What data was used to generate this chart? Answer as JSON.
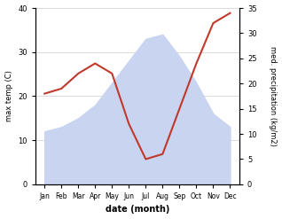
{
  "months": [
    "Jan",
    "Feb",
    "Mar",
    "Apr",
    "May",
    "Jun",
    "Jul",
    "Aug",
    "Sep",
    "Oct",
    "Nov",
    "Dec"
  ],
  "max_temp": [
    12,
    13,
    15,
    18,
    23,
    28,
    33,
    34,
    29,
    23,
    16,
    13
  ],
  "precipitation": [
    18,
    19,
    22,
    24,
    22,
    12,
    5,
    6,
    15,
    24,
    32,
    34
  ],
  "temp_color": "#c0392b",
  "precip_fill_color": "#c8d4f0",
  "temp_ylim": [
    0,
    40
  ],
  "precip_ylim": [
    0,
    35
  ],
  "temp_yticks": [
    0,
    10,
    20,
    30,
    40
  ],
  "precip_yticks": [
    0,
    5,
    10,
    15,
    20,
    25,
    30,
    35
  ],
  "xlabel": "date (month)",
  "ylabel_left": "max temp (C)",
  "ylabel_right": "med. precipitation (kg/m2)",
  "background_color": "#ffffff"
}
